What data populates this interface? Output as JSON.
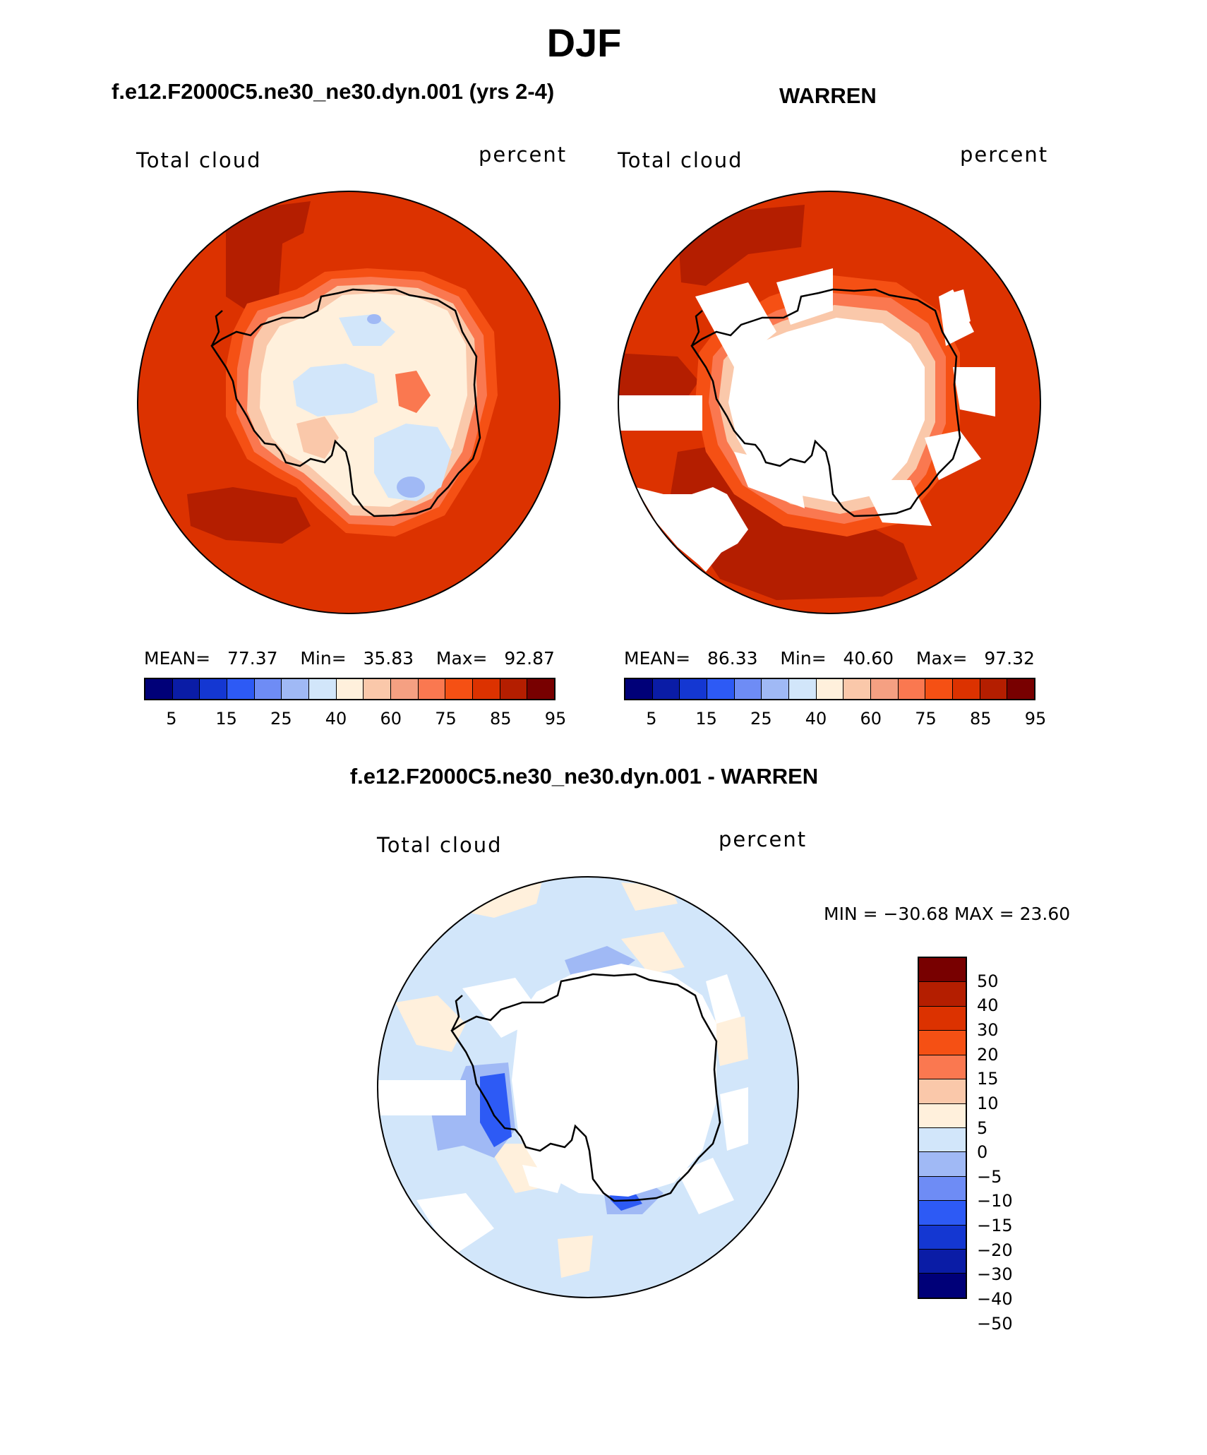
{
  "title": "DJF",
  "panels": [
    {
      "case": "f.e12.F2000C5.ne30_ne30.dyn.001 (yrs 2-4)",
      "variable": "Total cloud",
      "units": "percent",
      "stats": {
        "mean_label": "MEAN=",
        "mean": "77.37",
        "min_label": "Min=",
        "min": "35.83",
        "max_label": "Max=",
        "max": "92.87"
      }
    },
    {
      "case": "WARREN",
      "variable": "Total cloud",
      "units": "percent",
      "stats": {
        "mean_label": "MEAN=",
        "mean": "86.33",
        "min_label": "Min=",
        "min": "40.60",
        "max_label": "Max=",
        "max": "97.32"
      }
    },
    {
      "case": "f.e12.F2000C5.ne30_ne30.dyn.001 - WARREN",
      "variable": "Total cloud",
      "units": "percent",
      "stats_text": "MIN = −30.68 MAX =   23.60"
    }
  ],
  "colorbar_abs": {
    "colors": [
      "#000078",
      "#0a1ca6",
      "#1437d2",
      "#2d5af5",
      "#6e8cf5",
      "#a0b9f5",
      "#d2e6fa",
      "#fff0dc",
      "#fac8aa",
      "#f5a082",
      "#fa7850",
      "#f55014",
      "#dc3200",
      "#b41e00",
      "#780000"
    ],
    "labels": [
      "5",
      "15",
      "25",
      "40",
      "60",
      "75",
      "85",
      "95"
    ]
  },
  "colorbar_diff": {
    "colors": [
      "#780000",
      "#b41e00",
      "#dc3200",
      "#f55014",
      "#fa7850",
      "#fac8aa",
      "#fff0dc",
      "#d2e6fa",
      "#a0b9f5",
      "#6e8cf5",
      "#2d5af5",
      "#1437d2",
      "#0a1ca6",
      "#000078"
    ],
    "labels": [
      "50",
      "40",
      "30",
      "20",
      "15",
      "10",
      "5",
      "0",
      "−5",
      "−10",
      "−15",
      "−20",
      "−30",
      "−40",
      "−50"
    ]
  },
  "map_colors": {
    "ocean_high": "#dc3200",
    "ocean_max": "#b41e00",
    "margin_1": "#f55014",
    "margin_2": "#fa7850",
    "margin_3": "#fac8aa",
    "interior_low": "#fff0dc",
    "interior_lower": "#d2e6fa",
    "interior_lowest": "#a0b9f5",
    "diff_background": "#d2e6fa",
    "diff_pos": "#fff0dc",
    "diff_neg": "#a0b9f5",
    "diff_neg_strong": "#2d5af5",
    "missing": "#ffffff",
    "coast": "#000000"
  }
}
